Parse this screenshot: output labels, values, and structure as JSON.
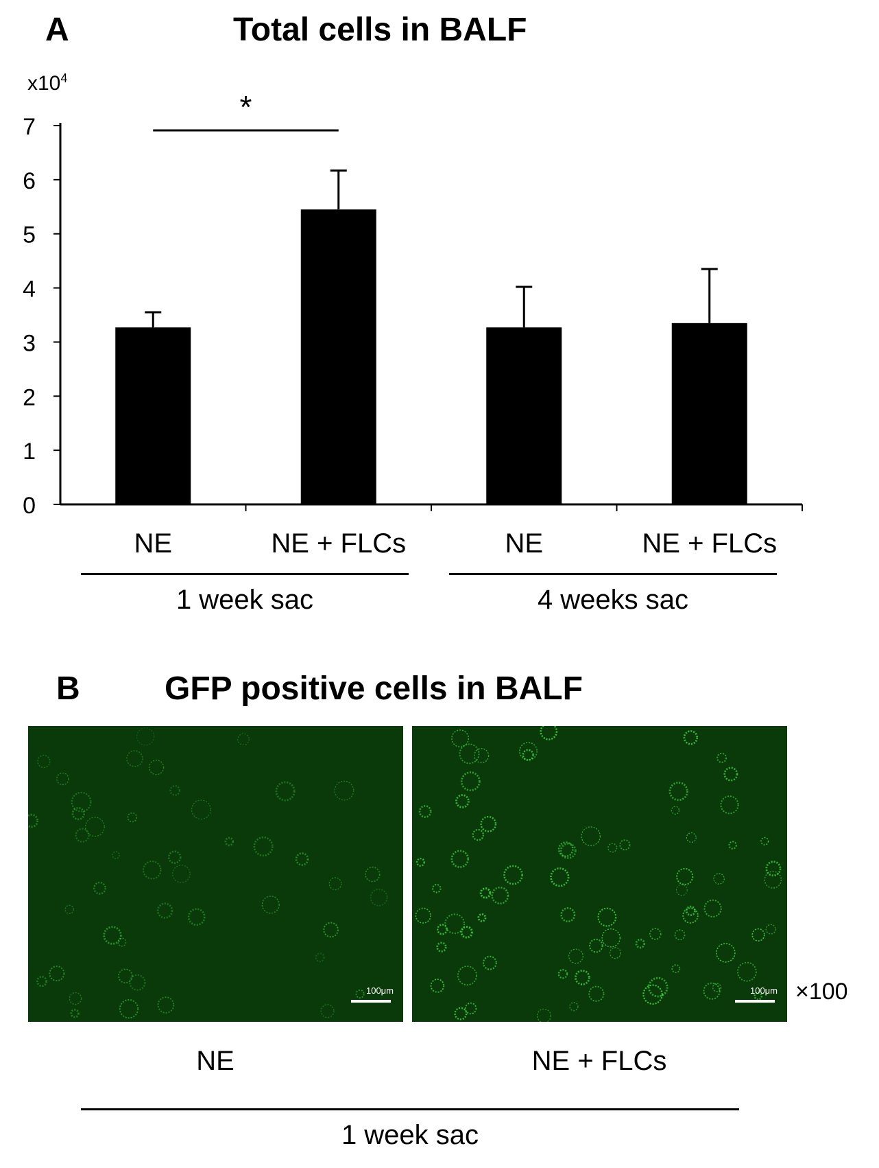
{
  "panel_a": {
    "letter": "A",
    "title": "Total cells in BALF",
    "multiplier": "x10",
    "multiplier_exp": "4",
    "significance": "*",
    "group_labels": [
      "1 week sac",
      "4 weeks sac"
    ]
  },
  "chart_data": {
    "type": "bar",
    "categories": [
      "NE",
      "NE + FLCs",
      "NE",
      "NE + FLCs"
    ],
    "groups": [
      "1 week sac",
      "1 week sac",
      "4 weeks sac",
      "4 weeks sac"
    ],
    "values": [
      3.27,
      5.45,
      3.27,
      3.35
    ],
    "errors": [
      0.28,
      0.72,
      0.75,
      1.0
    ],
    "ylim": [
      0,
      7
    ],
    "yticks": [
      0,
      1,
      2,
      3,
      4,
      5,
      6,
      7
    ],
    "ylabel": "",
    "xlabel": "",
    "title": "Total cells in BALF",
    "bar_color": "#000000",
    "significance": [
      {
        "from": 0,
        "to": 1,
        "label": "*"
      }
    ]
  },
  "panel_b": {
    "letter": "B",
    "title": "GFP positive cells in BALF",
    "images": [
      {
        "caption": "NE",
        "scale_label": "100μm",
        "density": "low"
      },
      {
        "caption": "NE + FLCs",
        "scale_label": "100μm",
        "density": "high"
      }
    ],
    "magnification": "×100",
    "group_label": "1 week sac",
    "background_color": "#0a3a0a",
    "cell_color": "#3fd43f"
  }
}
